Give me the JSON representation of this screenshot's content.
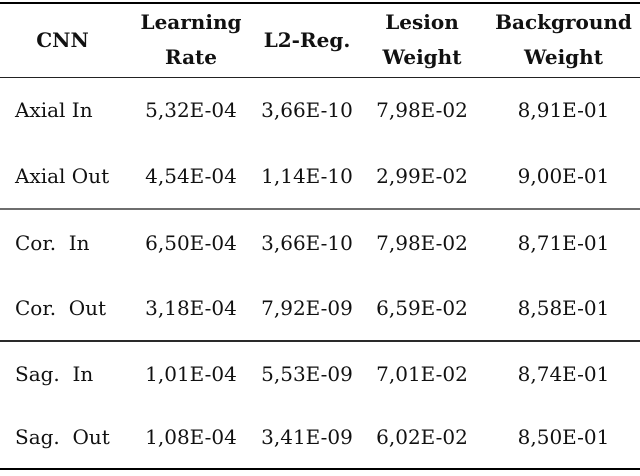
{
  "page": {
    "background_color": "#ffffff",
    "text_color": "#111111",
    "rule_colors": {
      "top": "#000000",
      "header_underline": "#222222",
      "group_separator_1": "#6e6e6e",
      "group_separator_2": "#2a2a2a",
      "bottom": "#000000"
    }
  },
  "table": {
    "headers": [
      "CNN",
      "Learning\nRate",
      "L2-Reg.",
      "Lesion\nWeight",
      "Background\nWeight"
    ],
    "rows": [
      [
        "Axial In",
        "5,32E-04",
        "3,66E-10",
        "7,98E-02",
        "8,91E-01"
      ],
      [
        "Axial Out",
        "4,54E-04",
        "1,14E-10",
        "2,99E-02",
        "9,00E-01"
      ],
      [
        "Cor.  In",
        "6,50E-04",
        "3,66E-10",
        "7,98E-02",
        "8,71E-01"
      ],
      [
        "Cor.  Out",
        "3,18E-04",
        "7,92E-09",
        "6,59E-02",
        "8,58E-01"
      ],
      [
        "Sag.  In",
        "1,01E-04",
        "5,53E-09",
        "7,01E-02",
        "8,74E-01"
      ],
      [
        "Sag.  Out",
        "1,08E-04",
        "3,41E-09",
        "6,02E-02",
        "8,50E-01"
      ]
    ]
  }
}
